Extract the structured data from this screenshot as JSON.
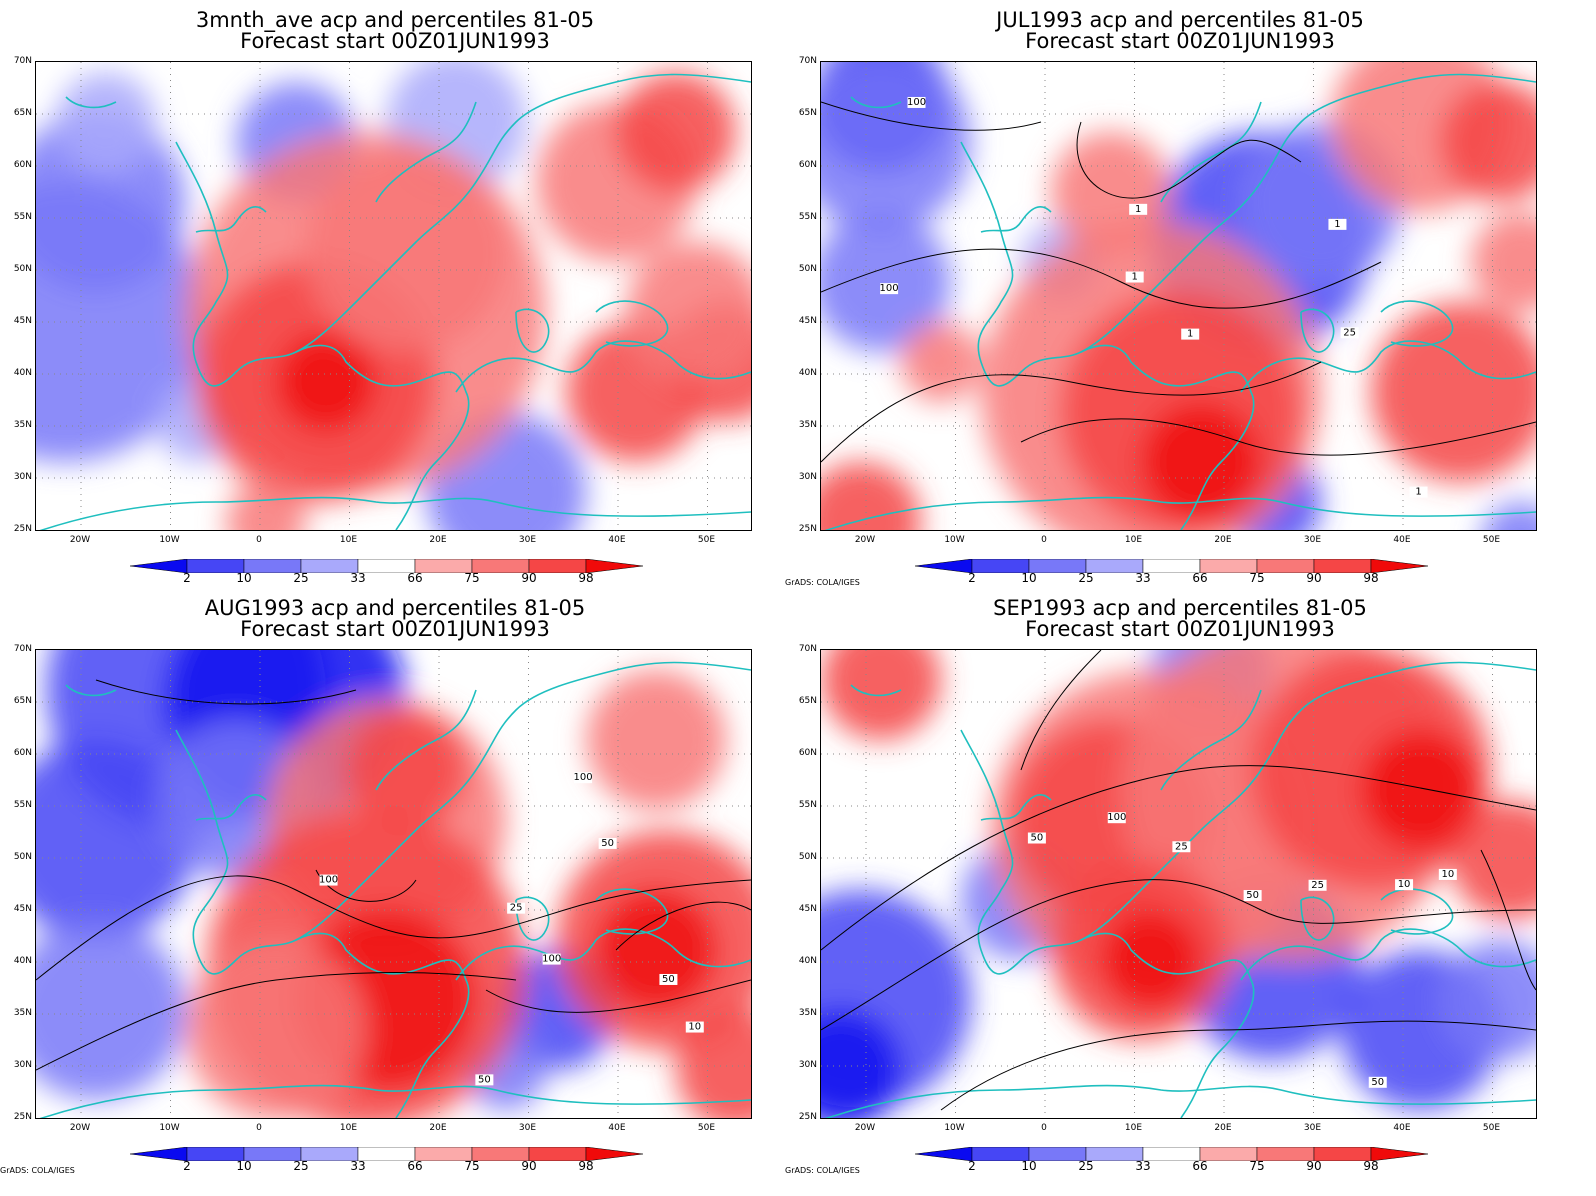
{
  "panels": [
    {
      "title1": "3mnth_ave acp and percentiles 81-05",
      "title2": "Forecast start 00Z01JUN1993",
      "credit": "",
      "contours": false
    },
    {
      "title1": "JUL1993 acp and percentiles 81-05",
      "title2": "Forecast start 00Z01JUN1993",
      "credit": "GrADS: COLA/IGES",
      "contours": true
    },
    {
      "title1": "AUG1993 acp and percentiles 81-05",
      "title2": "Forecast start 00Z01JUN1993",
      "credit": "GrADS: COLA/IGES",
      "contours": true
    },
    {
      "title1": "SEP1993 acp and percentiles 81-05",
      "title2": "Forecast start 00Z01JUN1993",
      "credit": "GrADS: COLA/IGES",
      "contours": true
    }
  ],
  "lat_labels": [
    "70N",
    "65N",
    "60N",
    "55N",
    "50N",
    "45N",
    "40N",
    "35N",
    "30N",
    "25N"
  ],
  "lon_labels": [
    "20W",
    "10W",
    "0",
    "10E",
    "20E",
    "30E",
    "40E",
    "50E"
  ],
  "colorbar": {
    "labels": [
      "2",
      "10",
      "25",
      "33",
      "66",
      "75",
      "90",
      "98"
    ],
    "colors": [
      "#0a0af0",
      "#4646f5",
      "#7878f8",
      "#a9a9fb",
      "#ffffff",
      "#fbaaaa",
      "#f87878",
      "#f54646",
      "#f00a0a"
    ]
  },
  "contour_labels": [
    "1",
    "10",
    "25",
    "50",
    "100"
  ],
  "colors": {
    "coast": "#1fbfbf",
    "grid": "#888888",
    "contour": "#000000"
  }
}
